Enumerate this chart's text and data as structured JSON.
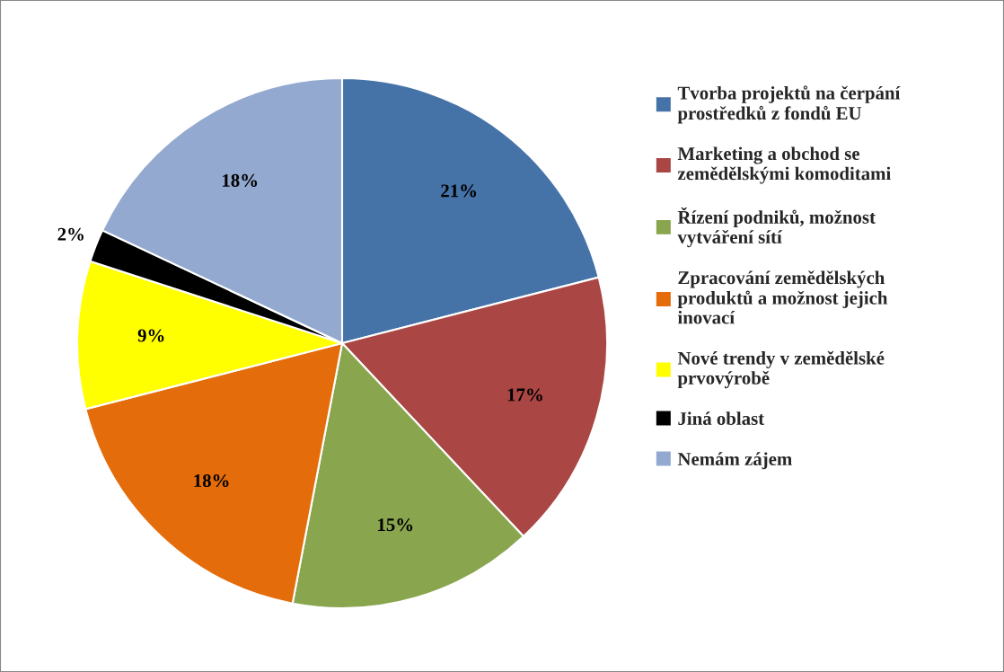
{
  "chart_data": {
    "type": "pie",
    "categories": [
      "Tvorba projektů na čerpání\nprostředků z fondů EU",
      "Marketing a obchod se\nzemědělskými komoditami",
      "Řízení podniků, možnost\nvytváření sítí",
      "Zpracování zemědělských\nproduktů a možnost jejich\ninovací",
      "Nové trendy v zemědělské\nprvovýrobě",
      "Jiná oblast",
      "Nemám zájem"
    ],
    "values": [
      21,
      17,
      15,
      18,
      9,
      2,
      18
    ],
    "value_labels": [
      "21%",
      "17%",
      "15%",
      "18%",
      "9%",
      "2%",
      "18%"
    ],
    "colors": [
      "#4572a7",
      "#aa4643",
      "#89a54e",
      "#e46c0a",
      "#ffff00",
      "#000000",
      "#93a9cf"
    ],
    "legend": "right"
  }
}
